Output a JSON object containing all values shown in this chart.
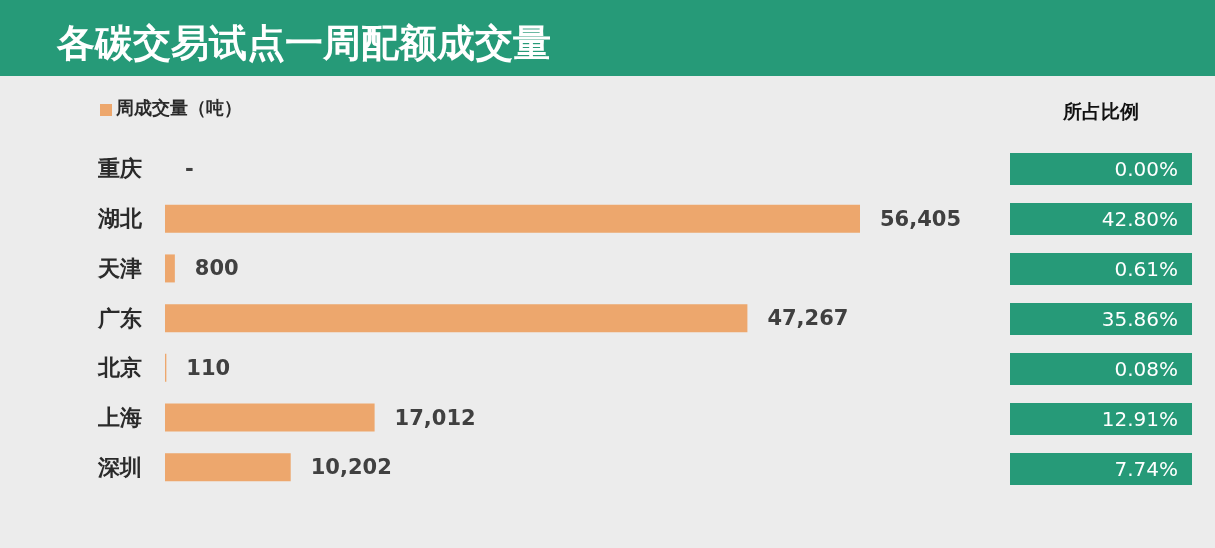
{
  "chart_data": {
    "type": "bar",
    "orientation": "horizontal",
    "title": "各碳交易试点一周配额成交量",
    "categories": [
      "重庆",
      "湖北",
      "天津",
      "广东",
      "北京",
      "上海",
      "深圳"
    ],
    "series": [
      {
        "name": "周成交量（吨）",
        "color": "#eda76d",
        "values": [
          0,
          56405,
          800,
          47267,
          110,
          17012,
          10202
        ],
        "value_labels": [
          "-",
          "56,405",
          "800",
          "47,267",
          "110",
          "17,012",
          "10,202"
        ]
      }
    ],
    "legend": "top left",
    "annotations": [
      "所占比例",
      "0.00%",
      "42.80%",
      "0.61%",
      "35.86%",
      "0.08%",
      "12.91%",
      "7.74%"
    ]
  }
}
